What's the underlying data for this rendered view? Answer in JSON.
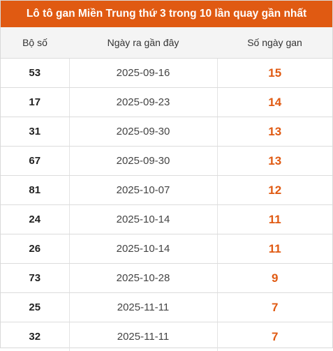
{
  "title": "Lô tô gan Miền Trung thứ 3 trong 10 lần quay gần nhất",
  "headers": {
    "number": "Bộ số",
    "date": "Ngày ra gần đây",
    "days": "Số ngày gan"
  },
  "rows": [
    {
      "number": "53",
      "date": "2025-09-16",
      "days": "15"
    },
    {
      "number": "17",
      "date": "2025-09-23",
      "days": "14"
    },
    {
      "number": "31",
      "date": "2025-09-30",
      "days": "13"
    },
    {
      "number": "67",
      "date": "2025-09-30",
      "days": "13"
    },
    {
      "number": "81",
      "date": "2025-10-07",
      "days": "12"
    },
    {
      "number": "24",
      "date": "2025-10-14",
      "days": "11"
    },
    {
      "number": "26",
      "date": "2025-10-14",
      "days": "11"
    },
    {
      "number": "73",
      "date": "2025-10-28",
      "days": "9"
    },
    {
      "number": "25",
      "date": "2025-11-11",
      "days": "7"
    },
    {
      "number": "32",
      "date": "2025-11-11",
      "days": "7"
    }
  ],
  "colors": {
    "accent": "#e05a12",
    "header_bg": "#f4f4f4"
  }
}
